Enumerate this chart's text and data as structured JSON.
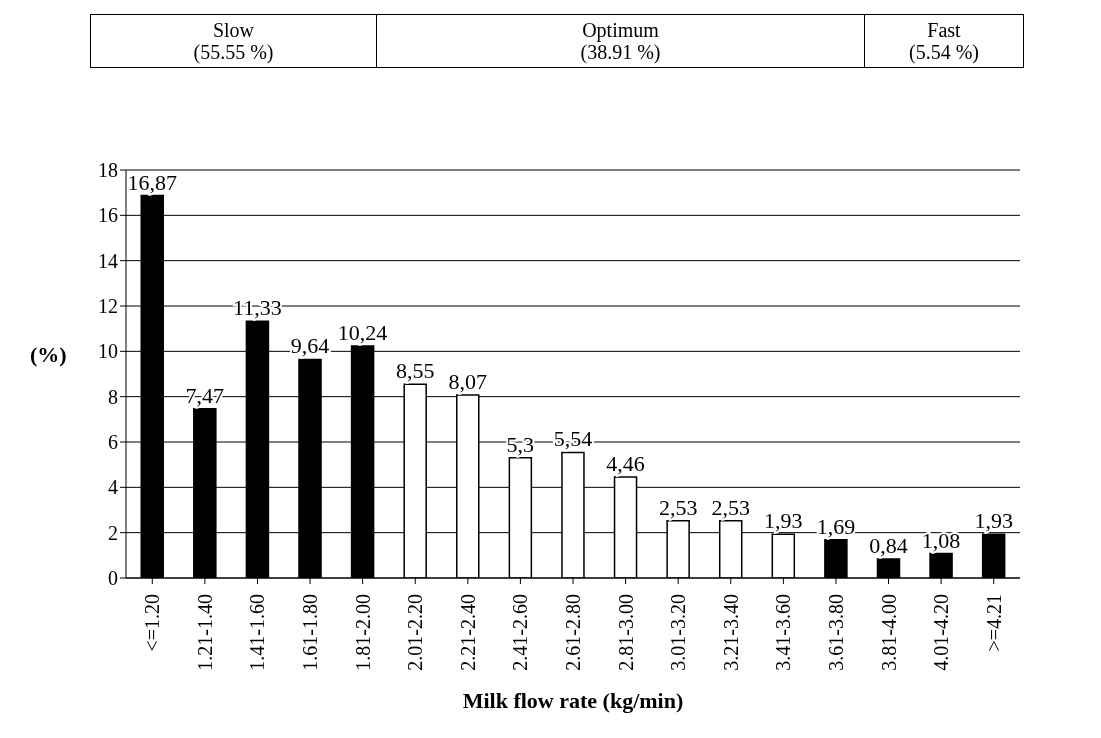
{
  "chart_data": {
    "type": "bar",
    "xlabel": "Milk flow rate (kg/min)",
    "ylabel": "(%)",
    "categories": [
      "<=1.20",
      "1.21-1.40",
      "1.41-1.60",
      "1.61-1.80",
      "1.81-2.00",
      "2.01-2.20",
      "2.21-2.40",
      "2.41-2.60",
      "2.61-2.80",
      "2.81-3.00",
      "3.01-3.20",
      "3.21-3.40",
      "3.41-3.60",
      "3.61-3.80",
      "3.81-4.00",
      "4.01-4.20",
      ">=4.21"
    ],
    "values": [
      16.87,
      7.47,
      11.33,
      9.64,
      10.24,
      8.55,
      8.07,
      5.3,
      5.54,
      4.46,
      2.53,
      2.53,
      1.93,
      1.69,
      0.84,
      1.08,
      1.93
    ],
    "value_labels": [
      "16,87",
      "7,47",
      "11,33",
      "9,64",
      "10,24",
      "8,55",
      "8,07",
      "5,3",
      "5,54",
      "4,46",
      "2,53",
      "2,53",
      "1,93",
      "1,69",
      "0,84",
      "1,08",
      "1,93"
    ],
    "colors": [
      "#000000",
      "#000000",
      "#000000",
      "#000000",
      "#000000",
      "#ffffff",
      "#ffffff",
      "#ffffff",
      "#ffffff",
      "#ffffff",
      "#ffffff",
      "#ffffff",
      "#ffffff",
      "#000000",
      "#000000",
      "#000000",
      "#000000"
    ],
    "ylim": [
      0,
      18
    ],
    "yticks": [
      0,
      2,
      4,
      6,
      8,
      10,
      12,
      14,
      16,
      18
    ],
    "grid": "y",
    "legend": false,
    "annotations": [
      "Slow\n(55.55 %)",
      "Optimum\n(38.91 %)",
      "Fast\n(5.54 %)"
    ]
  }
}
